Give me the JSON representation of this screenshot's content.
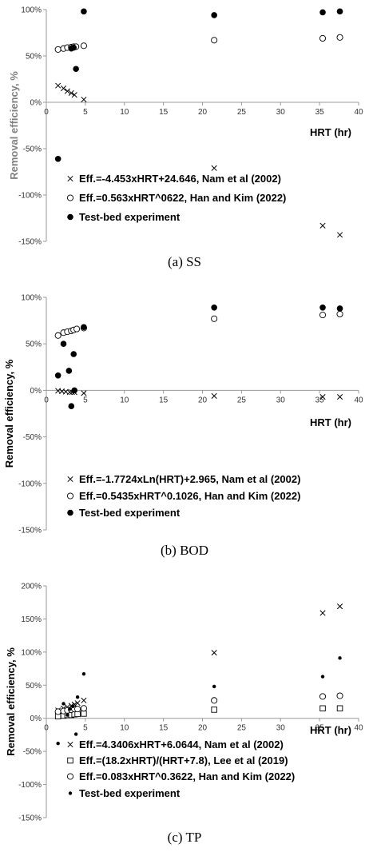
{
  "chart_data": [
    {
      "type": "scatter",
      "caption": "(a) SS",
      "xlabel": "HRT (hr)",
      "ylabel": "Removal efficiency, %",
      "ylabel_color": "#808080",
      "xlim": [
        0,
        40
      ],
      "ylim": [
        -150,
        100
      ],
      "xticks": [
        0,
        5,
        10,
        15,
        20,
        25,
        30,
        35,
        40
      ],
      "yticks": [
        -150,
        -100,
        -50,
        0,
        50,
        100
      ],
      "ytick_labels": [
        "-150%",
        "-100%",
        "-50%",
        "0%",
        "50%",
        "100%"
      ],
      "grid": false,
      "legend_position": "bottom-left",
      "series": [
        {
          "name": "Eff.=-4.453xHRT+24.646, Nam et al (2002)",
          "marker": "x",
          "points": [
            [
              1.5,
              18
            ],
            [
              2.2,
              15
            ],
            [
              2.7,
              12
            ],
            [
              3.2,
              10
            ],
            [
              3.6,
              8
            ],
            [
              4.8,
              3
            ],
            [
              21.5,
              -71
            ],
            [
              35.4,
              -133
            ],
            [
              37.6,
              -143
            ]
          ]
        },
        {
          "name": "Eff.=0.563xHRT^0622, Han and Kim (2022)",
          "marker": "circle-open",
          "points": [
            [
              1.5,
              57
            ],
            [
              2.2,
              58
            ],
            [
              2.7,
              59
            ],
            [
              3.2,
              59.5
            ],
            [
              3.5,
              60
            ],
            [
              3.8,
              60
            ],
            [
              4.8,
              61
            ],
            [
              21.5,
              67
            ],
            [
              35.4,
              69
            ],
            [
              37.6,
              70
            ]
          ]
        },
        {
          "name": "Test-bed experiment",
          "marker": "circle-filled",
          "points": [
            [
              1.5,
              -61
            ],
            [
              3.2,
              58
            ],
            [
              3.5,
              59
            ],
            [
              3.8,
              36
            ],
            [
              4.8,
              98
            ],
            [
              21.5,
              94
            ],
            [
              35.4,
              97
            ],
            [
              37.6,
              98
            ]
          ]
        }
      ]
    },
    {
      "type": "scatter",
      "caption": "(b) BOD",
      "xlabel": "HRT (hr)",
      "ylabel": "Removal efficiency, %",
      "ylabel_color": "#000000",
      "xlim": [
        0,
        40
      ],
      "ylim": [
        -150,
        100
      ],
      "xticks": [
        0,
        5,
        10,
        15,
        20,
        25,
        30,
        35,
        40
      ],
      "yticks": [
        -150,
        -100,
        -50,
        0,
        50,
        100
      ],
      "ytick_labels": [
        "-150%",
        "-100%",
        "-50%",
        "0%",
        "50%",
        "100%"
      ],
      "grid": false,
      "legend_position": "bottom-left",
      "series": [
        {
          "name": "Eff.=-1.7724xLn(HRT)+2.965, Nam et al (2002)",
          "marker": "x",
          "points": [
            [
              1.5,
              -0.5
            ],
            [
              2.0,
              -1
            ],
            [
              2.5,
              -1.5
            ],
            [
              3.0,
              -2
            ],
            [
              3.3,
              -2
            ],
            [
              3.6,
              -2
            ],
            [
              4.8,
              -3
            ],
            [
              21.5,
              -6
            ],
            [
              35.4,
              -7
            ],
            [
              37.6,
              -7
            ]
          ]
        },
        {
          "name": "Eff.=0.5435xHRT^0.1026, Han and Kim (2022)",
          "marker": "circle-open",
          "points": [
            [
              1.5,
              59
            ],
            [
              2.2,
              62
            ],
            [
              2.7,
              63
            ],
            [
              3.2,
              64
            ],
            [
              3.5,
              65
            ],
            [
              3.9,
              66
            ],
            [
              4.8,
              67
            ],
            [
              21.5,
              77
            ],
            [
              35.4,
              81
            ],
            [
              37.6,
              82
            ]
          ]
        },
        {
          "name": "Test-bed experiment",
          "marker": "circle-filled",
          "points": [
            [
              1.5,
              16
            ],
            [
              2.2,
              50
            ],
            [
              2.9,
              21
            ],
            [
              3.2,
              -17
            ],
            [
              3.5,
              39
            ],
            [
              3.6,
              0
            ],
            [
              4.8,
              68
            ],
            [
              21.5,
              89
            ],
            [
              35.4,
              89
            ],
            [
              37.6,
              88
            ]
          ]
        }
      ]
    },
    {
      "type": "scatter",
      "caption": "(c) TP",
      "xlabel": "HRT (hr)",
      "ylabel": "Removal efficiency, %",
      "ylabel_color": "#000000",
      "xlim": [
        0,
        40
      ],
      "ylim": [
        -150,
        200
      ],
      "xticks": [
        0,
        5,
        10,
        15,
        20,
        25,
        30,
        35,
        40
      ],
      "yticks": [
        -150,
        -100,
        -50,
        0,
        50,
        100,
        150,
        200
      ],
      "ytick_labels": [
        "-150%",
        "-100%",
        "-50%",
        "0%",
        "50%",
        "100%",
        "150%",
        "200%"
      ],
      "grid": false,
      "legend_position": "bottom-left",
      "series": [
        {
          "name": "Eff.=4.3406xHRT+6.0644, Nam et al (2002)",
          "marker": "x",
          "points": [
            [
              1.5,
              12
            ],
            [
              2.2,
              15
            ],
            [
              2.7,
              17
            ],
            [
              3.2,
              19
            ],
            [
              3.6,
              21
            ],
            [
              4.0,
              23
            ],
            [
              4.8,
              27
            ],
            [
              21.5,
              99
            ],
            [
              35.4,
              159
            ],
            [
              37.6,
              169
            ]
          ]
        },
        {
          "name": "Eff.=(18.2xHRT)/(HRT+7.8), Lee et al (2019)",
          "marker": "square-open",
          "points": [
            [
              1.5,
              3
            ],
            [
              2.2,
              4
            ],
            [
              2.7,
              5
            ],
            [
              3.2,
              5
            ],
            [
              3.6,
              6
            ],
            [
              4.0,
              6.5
            ],
            [
              4.8,
              7
            ],
            [
              21.5,
              13
            ],
            [
              35.4,
              15
            ],
            [
              37.6,
              15
            ]
          ]
        },
        {
          "name": "Eff.=0.083xHRT^0.3622, Han and Kim (2022)",
          "marker": "circle-open",
          "points": [
            [
              1.5,
              10
            ],
            [
              2.2,
              11
            ],
            [
              2.7,
              12
            ],
            [
              3.2,
              13
            ],
            [
              3.6,
              14
            ],
            [
              4.0,
              14
            ],
            [
              4.8,
              15
            ],
            [
              21.5,
              27
            ],
            [
              35.4,
              33
            ],
            [
              37.6,
              34
            ]
          ]
        },
        {
          "name": "Test-bed experiment",
          "marker": "dot",
          "points": [
            [
              1.5,
              -38
            ],
            [
              2.2,
              22
            ],
            [
              2.7,
              5
            ],
            [
              3.0,
              14
            ],
            [
              3.4,
              18
            ],
            [
              3.8,
              -24
            ],
            [
              4.0,
              32
            ],
            [
              4.8,
              67
            ],
            [
              21.5,
              48
            ],
            [
              35.4,
              63
            ],
            [
              37.6,
              91
            ]
          ]
        }
      ]
    }
  ]
}
